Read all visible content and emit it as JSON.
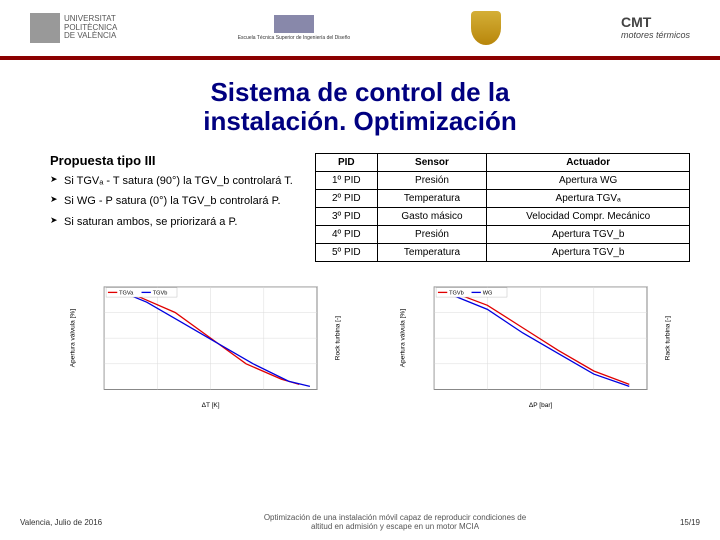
{
  "header": {
    "logo_left_l1": "UNIVERSITAT",
    "logo_left_l2": "POLITÈCNICA",
    "logo_left_l3": "DE VALÈNCIA",
    "logo_center": "Escuela Técnica Superior de Ingeniería del Diseño",
    "logo_right_l1": "CMT",
    "logo_right_l2": "motores térmicos"
  },
  "title_l1": "Sistema de control de la",
  "title_l2": "instalación. Optimización",
  "proposal": {
    "heading": "Propuesta tipo III",
    "b1": "Si TGVₐ - T satura (90°) la TGV_b controlará T.",
    "b2": "Si WG - P satura (0°) la TGV_b controlará P.",
    "b3": "Si saturan ambos, se priorizará a P."
  },
  "table": {
    "headers": [
      "PID",
      "Sensor",
      "Actuador"
    ],
    "rows": [
      [
        "1º PID",
        "Presión",
        "Apertura WG"
      ],
      [
        "2º PID",
        "Temperatura",
        "Apertura TGVₐ"
      ],
      [
        "3º PID",
        "Gasto másico",
        "Velocidad Compr. Mecánico"
      ],
      [
        "4º PID",
        "Presión",
        "Apertura TGV_b"
      ],
      [
        "5º PID",
        "Temperatura",
        "Apertura TGV_b"
      ]
    ]
  },
  "chart_left": {
    "type": "line",
    "ylabel": "Apertura válvula [%]",
    "ylabel2": "Rock turbina [-]",
    "xlabel": "ΔT [K]",
    "xlim": [
      -30,
      30
    ],
    "ylim": [
      0,
      100
    ],
    "legend": [
      "TGVa",
      "TGVb"
    ],
    "series": [
      {
        "name": "TGVa",
        "color": "#e00000",
        "pts": [
          [
            -25,
            95
          ],
          [
            -20,
            90
          ],
          [
            -10,
            75
          ],
          [
            0,
            50
          ],
          [
            10,
            25
          ],
          [
            20,
            10
          ],
          [
            25,
            5
          ]
        ]
      },
      {
        "name": "TGVb",
        "color": "#0000e0",
        "pts": [
          [
            -25,
            95
          ],
          [
            -18,
            85
          ],
          [
            -8,
            65
          ],
          [
            2,
            45
          ],
          [
            12,
            25
          ],
          [
            22,
            8
          ],
          [
            28,
            3
          ]
        ]
      }
    ],
    "grid_color": "#d8d8d8",
    "bg": "#ffffff"
  },
  "chart_right": {
    "type": "line",
    "ylabel": "Apertura válvula [%]",
    "ylabel2": "Rack turbina [-]",
    "xlabel": "ΔP [bar]",
    "xlim": [
      -0.3,
      0.3
    ],
    "ylim": [
      0,
      100
    ],
    "legend": [
      "TGVb",
      "WG"
    ],
    "series": [
      {
        "name": "TGVb",
        "color": "#e00000",
        "pts": [
          [
            -0.25,
            95
          ],
          [
            -0.15,
            82
          ],
          [
            -0.05,
            60
          ],
          [
            0.05,
            38
          ],
          [
            0.15,
            18
          ],
          [
            0.25,
            5
          ]
        ]
      },
      {
        "name": "WG",
        "color": "#0000e0",
        "pts": [
          [
            -0.25,
            92
          ],
          [
            -0.15,
            78
          ],
          [
            -0.05,
            55
          ],
          [
            0.05,
            35
          ],
          [
            0.15,
            15
          ],
          [
            0.25,
            3
          ]
        ]
      }
    ],
    "grid_color": "#d8d8d8",
    "bg": "#ffffff"
  },
  "footer": {
    "left": "Valencia, Julio de 2016",
    "center_l1": "Optimización de una instalación móvil capaz de reproducir condiciones de",
    "center_l2": "altitud en admisión y escape en un motor MCIA",
    "right": "15/19"
  }
}
